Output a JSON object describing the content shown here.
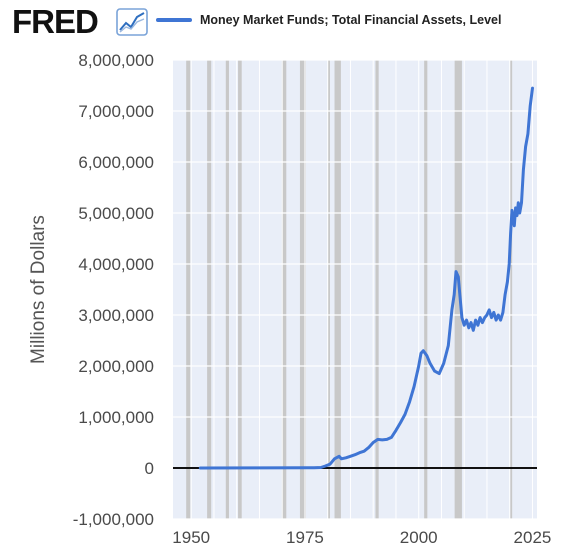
{
  "header": {
    "logo_text": "FRED",
    "legend_label": "Money Market Funds; Total Financial Assets, Level"
  },
  "colors": {
    "series": "#3f75d4",
    "plot_bg": "#e9eef8",
    "recession": "#c8c8c8",
    "grid": "#ffffff",
    "zero_line": "#111111"
  },
  "chart_data": {
    "type": "line",
    "title": "",
    "ylabel": "Millions of Dollars",
    "xlabel": "",
    "xlim": [
      1946,
      2026
    ],
    "ylim": [
      -1000000,
      8000000
    ],
    "grid": true,
    "legend_position": "top",
    "x_ticks": [
      1950,
      1975,
      2000,
      2025
    ],
    "x_tick_labels": [
      "1950",
      "1975",
      "2000",
      "2025"
    ],
    "y_ticks": [
      -1000000,
      0,
      1000000,
      2000000,
      3000000,
      4000000,
      5000000,
      6000000,
      7000000,
      8000000
    ],
    "y_tick_labels": [
      "-1,000,000",
      "0",
      "1,000,000",
      "2,000,000",
      "3,000,000",
      "4,000,000",
      "5,000,000",
      "6,000,000",
      "7,000,000",
      "8,000,000"
    ],
    "recessions": [
      [
        1948.9,
        1949.8
      ],
      [
        1953.5,
        1954.4
      ],
      [
        1957.6,
        1958.3
      ],
      [
        1960.3,
        1961.1
      ],
      [
        1969.9,
        1970.9
      ],
      [
        1973.9,
        1975.2
      ],
      [
        1980.0,
        1980.5
      ],
      [
        1981.5,
        1982.9
      ],
      [
        1990.5,
        1991.2
      ],
      [
        2001.2,
        2001.9
      ],
      [
        2007.9,
        2009.5
      ],
      [
        2020.1,
        2020.3
      ]
    ],
    "series": [
      {
        "name": "Money Market Funds; Total Financial Assets, Level",
        "x": [
          1952.0,
          1965.0,
          1975.0,
          1977.0,
          1978.5,
          1979.5,
          1980.5,
          1981.5,
          1982.5,
          1983.0,
          1984.0,
          1985.0,
          1986.0,
          1987.0,
          1988.0,
          1989.0,
          1990.0,
          1991.0,
          1992.0,
          1993.0,
          1994.0,
          1995.0,
          1996.0,
          1997.0,
          1998.0,
          1999.0,
          2000.0,
          2000.5,
          2001.0,
          2001.8,
          2002.5,
          2003.5,
          2004.5,
          2005.5,
          2006.5,
          2007.3,
          2007.8,
          2008.2,
          2008.7,
          2009.0,
          2009.5,
          2010.0,
          2010.5,
          2011.0,
          2011.5,
          2012.0,
          2012.5,
          2013.0,
          2013.5,
          2014.0,
          2014.5,
          2015.0,
          2015.5,
          2016.0,
          2016.5,
          2017.0,
          2017.5,
          2018.0,
          2018.5,
          2019.0,
          2019.5,
          2019.9,
          2020.2,
          2020.5,
          2020.8,
          2021.0,
          2021.3,
          2021.6,
          2021.9,
          2022.2,
          2022.6,
          2023.0,
          2023.5,
          2024.0,
          2024.5,
          2025.0
        ],
        "values": [
          0,
          2000,
          4000,
          5000,
          10000,
          40000,
          75000,
          180000,
          230000,
          180000,
          200000,
          230000,
          260000,
          300000,
          330000,
          400000,
          500000,
          560000,
          550000,
          560000,
          600000,
          740000,
          890000,
          1050000,
          1300000,
          1600000,
          2000000,
          2250000,
          2300000,
          2200000,
          2050000,
          1900000,
          1850000,
          2050000,
          2400000,
          3100000,
          3400000,
          3850000,
          3750000,
          3450000,
          2950000,
          2800000,
          2900000,
          2750000,
          2850000,
          2700000,
          2900000,
          2800000,
          2950000,
          2850000,
          2950000,
          3000000,
          3100000,
          2950000,
          3050000,
          2900000,
          3000000,
          2900000,
          3050000,
          3400000,
          3650000,
          4000000,
          4600000,
          5050000,
          4900000,
          4750000,
          5100000,
          4950000,
          5200000,
          5000000,
          5200000,
          5850000,
          6300000,
          6550000,
          7100000,
          7450000
        ]
      }
    ]
  }
}
